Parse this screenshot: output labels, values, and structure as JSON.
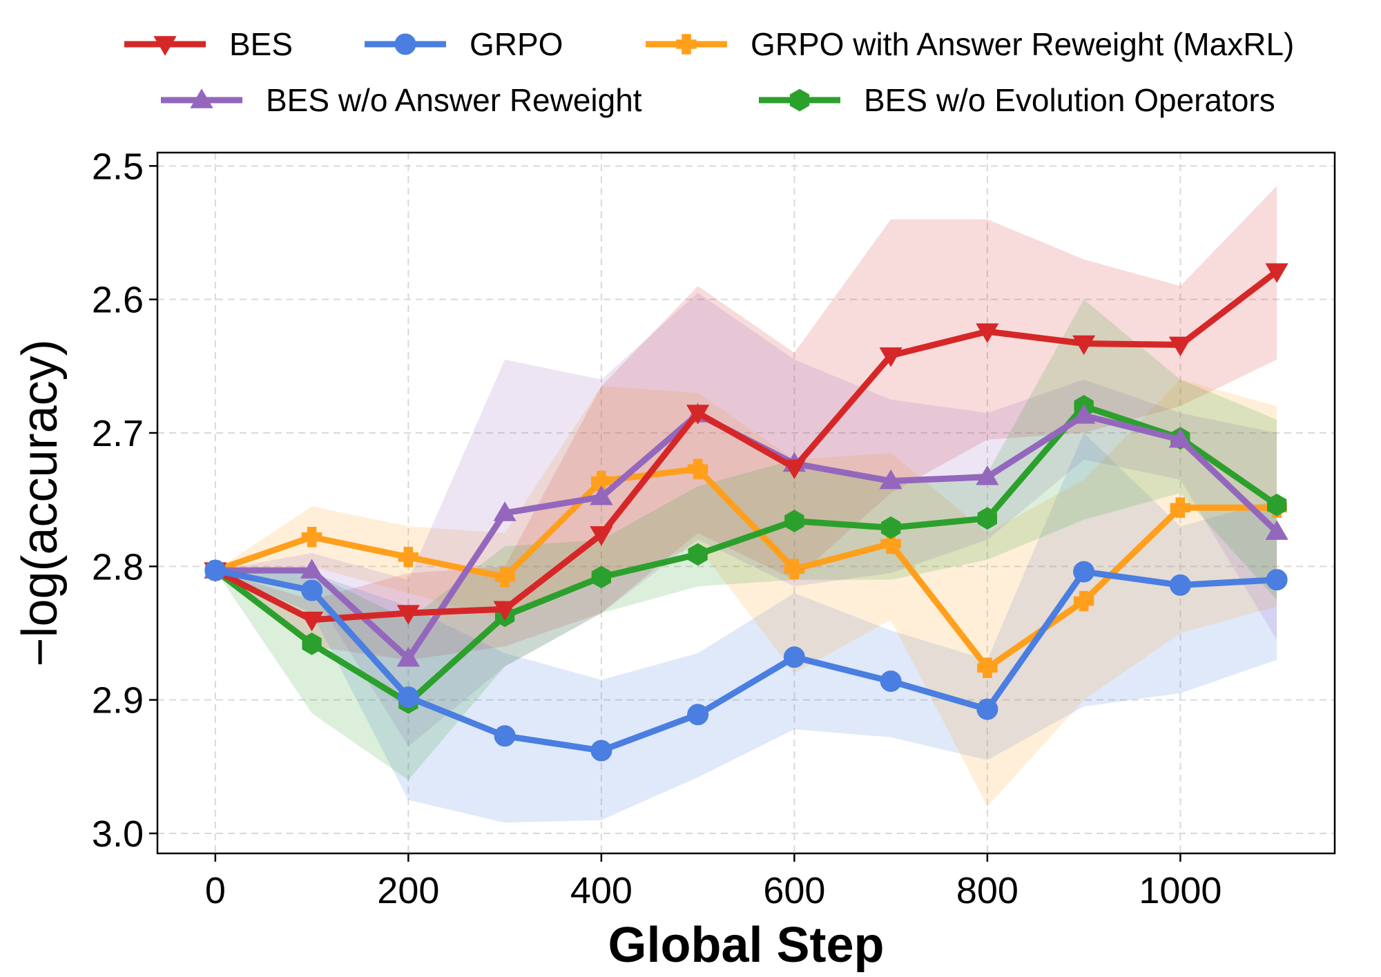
{
  "chart_data": {
    "type": "line",
    "title": "",
    "xlabel": "Global Step",
    "ylabel": "−log(accuracy)",
    "x": [
      0,
      100,
      200,
      300,
      400,
      500,
      600,
      700,
      800,
      900,
      1000,
      1100
    ],
    "xlim": [
      -60,
      1160
    ],
    "ylim": [
      3.015,
      2.49
    ],
    "y_inverted": true,
    "xticks": [
      0,
      200,
      400,
      600,
      800,
      1000
    ],
    "xtick_labels": [
      "0",
      "200",
      "400",
      "600",
      "800",
      "1000"
    ],
    "yticks": [
      2.5,
      2.6,
      2.7,
      2.8,
      2.9,
      3.0
    ],
    "ytick_labels": [
      "2.5",
      "2.6",
      "2.7",
      "2.8",
      "2.9",
      "3.0"
    ],
    "grid": true,
    "legend_position": "top",
    "shaded_band": true,
    "series": [
      {
        "name": "BES",
        "color": "#d62728",
        "marker": "triangle-down",
        "values": [
          2.803,
          2.84,
          2.835,
          2.832,
          2.776,
          2.685,
          2.726,
          2.642,
          2.624,
          2.633,
          2.634,
          2.579
        ],
        "band_low": [
          2.803,
          2.825,
          2.805,
          2.8,
          2.665,
          2.59,
          2.64,
          2.54,
          2.54,
          2.57,
          2.59,
          2.515
        ],
        "band_high": [
          2.803,
          2.86,
          2.87,
          2.86,
          2.835,
          2.775,
          2.81,
          2.745,
          2.705,
          2.7,
          2.68,
          2.645
        ]
      },
      {
        "name": "GRPO",
        "color": "#4a7ee0",
        "marker": "circle",
        "values": [
          2.803,
          2.818,
          2.898,
          2.927,
          2.938,
          2.911,
          2.868,
          2.886,
          2.907,
          2.804,
          2.814,
          2.81
        ],
        "band_low": [
          2.803,
          2.805,
          2.83,
          2.865,
          2.885,
          2.865,
          2.82,
          2.848,
          2.87,
          2.7,
          2.77,
          2.75
        ],
        "band_high": [
          2.803,
          2.835,
          2.975,
          2.992,
          2.99,
          2.958,
          2.922,
          2.928,
          2.945,
          2.905,
          2.895,
          2.87
        ]
      },
      {
        "name": "GRPO with Answer Reweight (MaxRL)",
        "color": "#ff9f1c",
        "marker": "plus",
        "values": [
          2.803,
          2.778,
          2.793,
          2.808,
          2.736,
          2.727,
          2.802,
          2.783,
          2.876,
          2.826,
          2.756,
          2.756
        ],
        "band_low": [
          2.803,
          2.755,
          2.77,
          2.775,
          2.665,
          2.67,
          2.72,
          2.715,
          2.775,
          2.735,
          2.66,
          2.68
        ],
        "band_high": [
          2.803,
          2.8,
          2.82,
          2.84,
          2.81,
          2.785,
          2.88,
          2.84,
          2.98,
          2.9,
          2.85,
          2.83
        ]
      },
      {
        "name": "BES w/o Answer Reweight",
        "color": "#9467bd",
        "marker": "triangle-up",
        "values": [
          2.803,
          2.803,
          2.869,
          2.76,
          2.748,
          2.686,
          2.723,
          2.736,
          2.733,
          2.687,
          2.705,
          2.774
        ],
        "band_low": [
          2.803,
          2.79,
          2.81,
          2.645,
          2.66,
          2.595,
          2.645,
          2.675,
          2.685,
          2.66,
          2.685,
          2.7
        ],
        "band_high": [
          2.803,
          2.818,
          2.935,
          2.875,
          2.835,
          2.78,
          2.815,
          2.805,
          2.78,
          2.72,
          2.735,
          2.855
        ]
      },
      {
        "name": "BES w/o Evolution Operators",
        "color": "#2ca02c",
        "marker": "hexagon",
        "values": [
          2.803,
          2.858,
          2.902,
          2.837,
          2.808,
          2.791,
          2.766,
          2.771,
          2.764,
          2.68,
          2.704,
          2.754
        ],
        "band_low": [
          2.803,
          2.805,
          2.84,
          2.785,
          2.78,
          2.74,
          2.72,
          2.735,
          2.73,
          2.6,
          2.66,
          2.69
        ],
        "band_high": [
          2.803,
          2.91,
          2.96,
          2.875,
          2.835,
          2.815,
          2.81,
          2.81,
          2.795,
          2.765,
          2.745,
          2.825
        ]
      }
    ]
  }
}
